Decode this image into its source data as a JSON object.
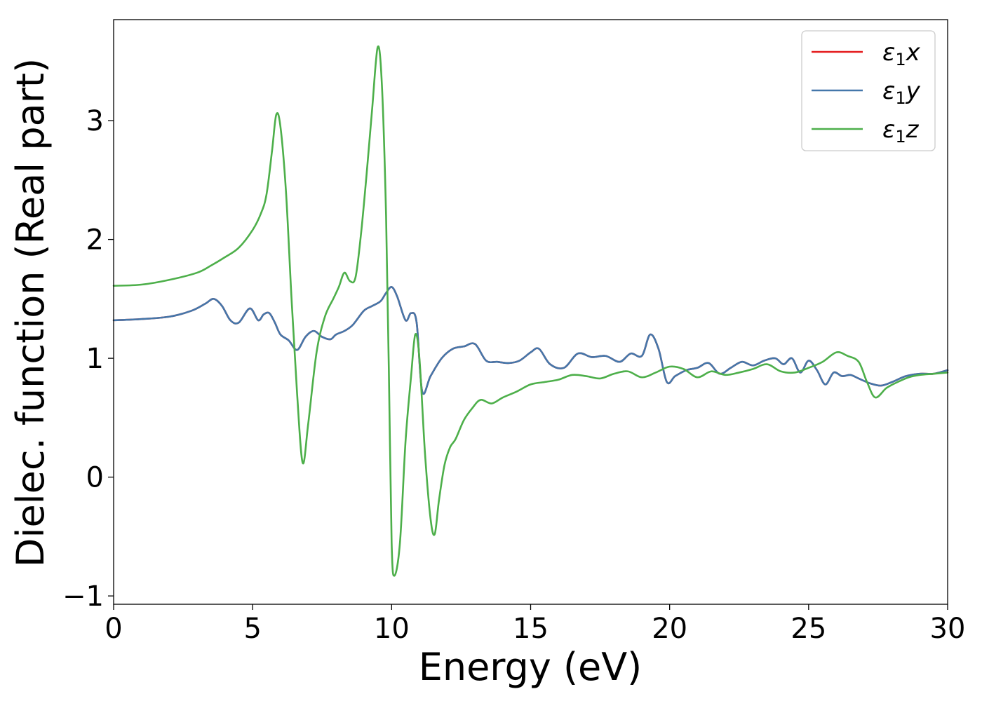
{
  "chart_data": {
    "type": "line",
    "xlabel": "Energy (eV)",
    "ylabel": "Dielec. function (Real part)",
    "xlim": [
      0,
      30
    ],
    "ylim": [
      -1.07,
      3.85
    ],
    "xticks": [
      0,
      5,
      10,
      15,
      20,
      25,
      30
    ],
    "xtick_labels": [
      "0",
      "5",
      "10",
      "15",
      "20",
      "25",
      "30"
    ],
    "yticks": [
      -1,
      0,
      1,
      2,
      3
    ],
    "ytick_labels": [
      "−1",
      "0",
      "1",
      "2",
      "3"
    ],
    "grid": false,
    "legend_position": "top-right",
    "series": [
      {
        "name": "ε1x",
        "legend_base": "ε",
        "legend_sub": "1",
        "legend_suffix": "x",
        "color": "#e41a1c",
        "x": [
          0,
          1,
          2,
          2.8,
          3.3,
          3.6,
          3.9,
          4.2,
          4.5,
          4.9,
          5.2,
          5.4,
          5.6,
          5.8,
          6.0,
          6.3,
          6.6,
          6.9,
          7.2,
          7.5,
          7.8,
          8.0,
          8.3,
          8.6,
          9.0,
          9.3,
          9.6,
          9.8,
          10.0,
          10.2,
          10.5,
          10.7,
          10.9,
          11.1,
          11.4,
          11.8,
          12.2,
          12.6,
          13.0,
          13.4,
          13.8,
          14.2,
          14.6,
          15.0,
          15.3,
          15.7,
          16.2,
          16.7,
          17.2,
          17.7,
          18.2,
          18.6,
          19.0,
          19.3,
          19.6,
          19.9,
          20.2,
          20.6,
          21.0,
          21.4,
          21.8,
          22.2,
          22.6,
          23.0,
          23.4,
          23.8,
          24.1,
          24.4,
          24.7,
          25.0,
          25.3,
          25.6,
          25.9,
          26.2,
          26.5,
          26.8,
          27.2,
          27.6,
          28.0,
          28.5,
          29.0,
          29.5,
          30.0
        ],
        "y": [
          1.32,
          1.33,
          1.35,
          1.4,
          1.46,
          1.5,
          1.44,
          1.32,
          1.3,
          1.42,
          1.32,
          1.37,
          1.38,
          1.3,
          1.2,
          1.15,
          1.07,
          1.18,
          1.23,
          1.18,
          1.16,
          1.2,
          1.23,
          1.28,
          1.4,
          1.44,
          1.48,
          1.55,
          1.6,
          1.52,
          1.32,
          1.38,
          1.3,
          0.72,
          0.85,
          1.0,
          1.08,
          1.1,
          1.12,
          0.98,
          0.97,
          0.96,
          0.98,
          1.05,
          1.08,
          0.95,
          0.92,
          1.04,
          1.01,
          1.02,
          0.97,
          1.04,
          1.02,
          1.2,
          1.08,
          0.8,
          0.85,
          0.9,
          0.92,
          0.96,
          0.87,
          0.92,
          0.97,
          0.94,
          0.98,
          1.0,
          0.95,
          1.0,
          0.88,
          0.98,
          0.9,
          0.78,
          0.88,
          0.85,
          0.86,
          0.83,
          0.79,
          0.77,
          0.8,
          0.85,
          0.87,
          0.87,
          0.9
        ]
      },
      {
        "name": "ε1y",
        "legend_base": "ε",
        "legend_sub": "1",
        "legend_suffix": "y",
        "color": "#4477aa",
        "x": [
          0,
          1,
          2,
          2.8,
          3.3,
          3.6,
          3.9,
          4.2,
          4.5,
          4.9,
          5.2,
          5.4,
          5.6,
          5.8,
          6.0,
          6.3,
          6.6,
          6.9,
          7.2,
          7.5,
          7.8,
          8.0,
          8.3,
          8.6,
          9.0,
          9.3,
          9.6,
          9.8,
          10.0,
          10.2,
          10.5,
          10.7,
          10.9,
          11.1,
          11.4,
          11.8,
          12.2,
          12.6,
          13.0,
          13.4,
          13.8,
          14.2,
          14.6,
          15.0,
          15.3,
          15.7,
          16.2,
          16.7,
          17.2,
          17.7,
          18.2,
          18.6,
          19.0,
          19.3,
          19.6,
          19.9,
          20.2,
          20.6,
          21.0,
          21.4,
          21.8,
          22.2,
          22.6,
          23.0,
          23.4,
          23.8,
          24.1,
          24.4,
          24.7,
          25.0,
          25.3,
          25.6,
          25.9,
          26.2,
          26.5,
          26.8,
          27.2,
          27.6,
          28.0,
          28.5,
          29.0,
          29.5,
          30.0
        ],
        "y": [
          1.32,
          1.33,
          1.35,
          1.4,
          1.46,
          1.5,
          1.44,
          1.32,
          1.3,
          1.42,
          1.32,
          1.37,
          1.38,
          1.3,
          1.2,
          1.15,
          1.07,
          1.18,
          1.23,
          1.18,
          1.16,
          1.2,
          1.23,
          1.28,
          1.4,
          1.44,
          1.48,
          1.55,
          1.6,
          1.52,
          1.32,
          1.38,
          1.3,
          0.72,
          0.85,
          1.0,
          1.08,
          1.1,
          1.12,
          0.98,
          0.97,
          0.96,
          0.98,
          1.05,
          1.08,
          0.95,
          0.92,
          1.04,
          1.01,
          1.02,
          0.97,
          1.04,
          1.02,
          1.2,
          1.08,
          0.8,
          0.85,
          0.9,
          0.92,
          0.96,
          0.87,
          0.92,
          0.97,
          0.94,
          0.98,
          1.0,
          0.95,
          1.0,
          0.88,
          0.98,
          0.9,
          0.78,
          0.88,
          0.85,
          0.86,
          0.83,
          0.79,
          0.77,
          0.8,
          0.85,
          0.87,
          0.87,
          0.9
        ]
      },
      {
        "name": "ε1z",
        "legend_base": "ε",
        "legend_sub": "1",
        "legend_suffix": "z",
        "color": "#4daf4a",
        "x": [
          0,
          1,
          2,
          3,
          3.5,
          4,
          4.5,
          5,
          5.3,
          5.5,
          5.7,
          5.85,
          6.0,
          6.2,
          6.4,
          6.6,
          6.8,
          7.0,
          7.3,
          7.6,
          7.9,
          8.1,
          8.3,
          8.5,
          8.7,
          8.9,
          9.1,
          9.3,
          9.5,
          9.65,
          9.8,
          9.9,
          10.0,
          10.1,
          10.3,
          10.5,
          10.7,
          10.85,
          11.0,
          11.2,
          11.4,
          11.55,
          11.7,
          11.9,
          12.1,
          12.3,
          12.6,
          12.9,
          13.2,
          13.6,
          14.0,
          14.5,
          15.0,
          15.5,
          16.0,
          16.5,
          17.0,
          17.5,
          18.0,
          18.5,
          19.0,
          19.5,
          20.0,
          20.5,
          21.0,
          21.5,
          22.0,
          22.5,
          23.0,
          23.5,
          24.0,
          24.5,
          25.0,
          25.5,
          26.0,
          26.4,
          26.8,
          27.1,
          27.4,
          27.8,
          28.2,
          28.6,
          29.0,
          29.5,
          30.0
        ],
        "y": [
          1.61,
          1.62,
          1.66,
          1.72,
          1.78,
          1.85,
          1.93,
          2.08,
          2.22,
          2.38,
          2.75,
          3.05,
          2.95,
          2.4,
          1.5,
          0.7,
          0.12,
          0.45,
          1.05,
          1.35,
          1.5,
          1.6,
          1.72,
          1.65,
          1.68,
          2.05,
          2.55,
          3.1,
          3.62,
          3.3,
          2.2,
          0.9,
          -0.55,
          -0.83,
          -0.55,
          0.3,
          0.85,
          1.2,
          1.0,
          0.2,
          -0.35,
          -0.48,
          -0.2,
          0.1,
          0.25,
          0.32,
          0.48,
          0.58,
          0.65,
          0.62,
          0.67,
          0.72,
          0.78,
          0.8,
          0.82,
          0.86,
          0.85,
          0.83,
          0.87,
          0.89,
          0.84,
          0.88,
          0.93,
          0.91,
          0.84,
          0.89,
          0.86,
          0.88,
          0.91,
          0.95,
          0.89,
          0.88,
          0.92,
          0.97,
          1.05,
          1.02,
          0.97,
          0.8,
          0.67,
          0.75,
          0.8,
          0.84,
          0.86,
          0.87,
          0.88
        ]
      }
    ]
  }
}
